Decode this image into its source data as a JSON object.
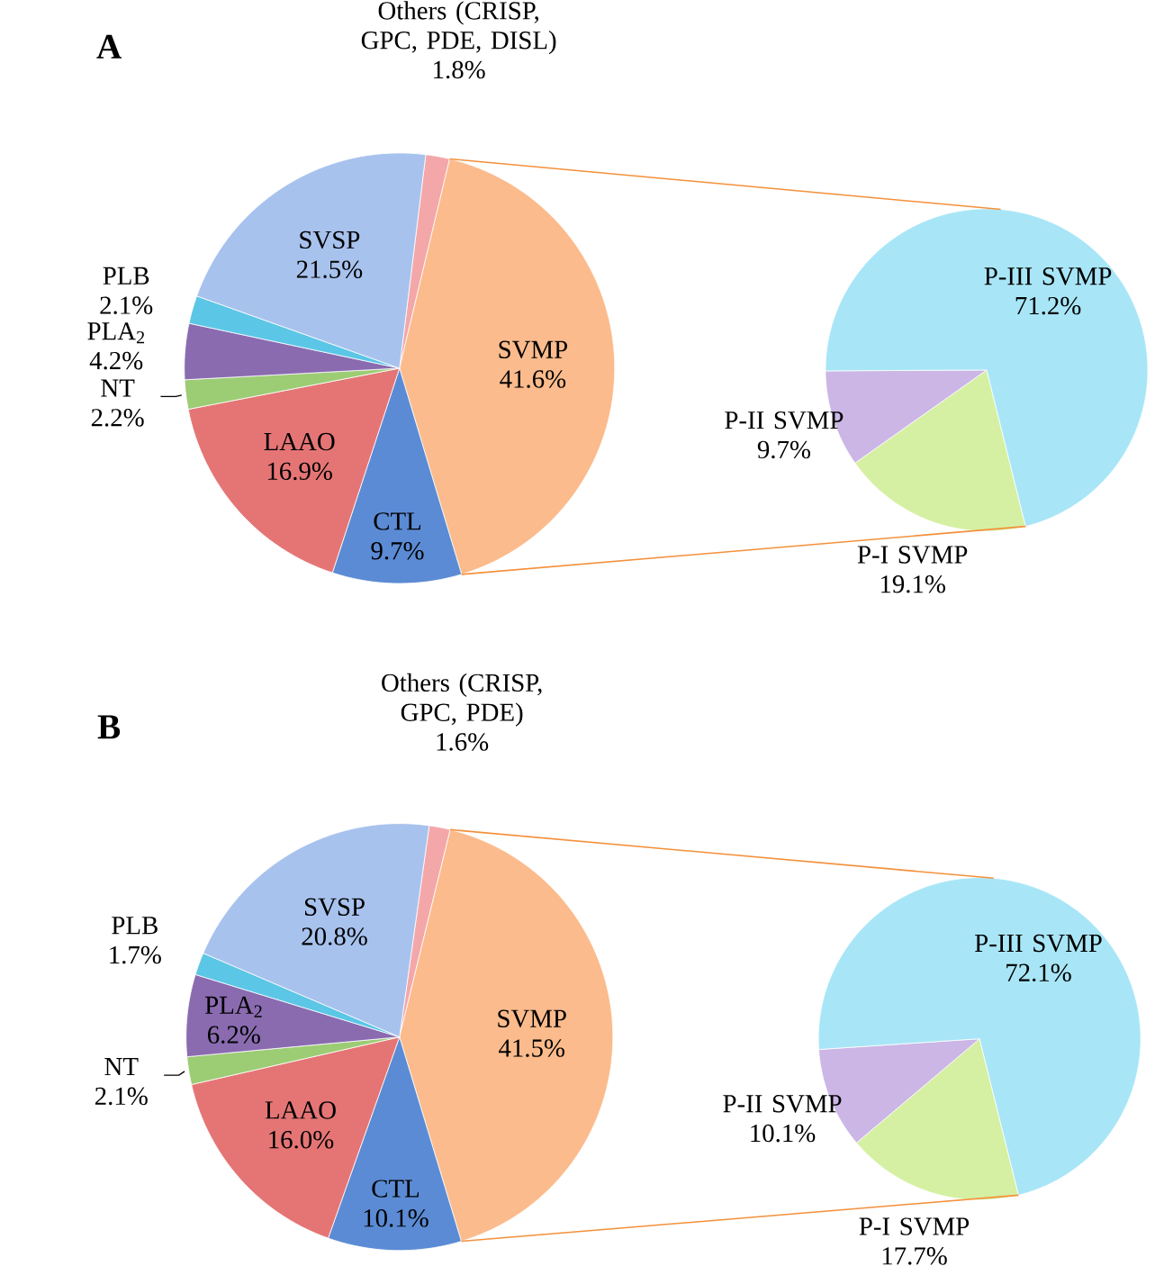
{
  "chart_data": [
    {
      "type": "pie",
      "title": "A",
      "categories": [
        "Others (CRISP, GPC, PDE, DISL)",
        "SVMP",
        "CTL",
        "LAAO",
        "NT",
        "PLA$_{2}$",
        "PLB",
        "SVSP"
      ],
      "values": [
        1.8,
        41.6,
        9.7,
        16.9,
        2.2,
        4.2,
        2.1,
        21.5
      ],
      "value_labels": [
        "1.8%",
        "41.6%",
        "9.7%",
        "16.9%",
        "2.2%",
        "4.2%",
        "2.1%",
        "21.5%"
      ],
      "colors": [
        "#f4a7a9",
        "#fbbb8c",
        "#5b8bd4",
        "#e57575",
        "#9ccc74",
        "#8a6bb0",
        "#5cc6e6",
        "#a8c2ee"
      ]
    },
    {
      "type": "pie",
      "categories": [
        "P-I SVMP",
        "P-II SVMP",
        "P-III SVMP"
      ],
      "values": [
        19.1,
        9.7,
        71.2
      ],
      "value_labels": [
        "19.1%",
        "9.7%",
        "71.2%"
      ],
      "colors": [
        "#d5f0a2",
        "#cbb6e6",
        "#a8e6f7"
      ]
    },
    {
      "type": "pie",
      "title": "B",
      "categories": [
        "Others (CRISP, GPC, PDE)",
        "SVMP",
        "CTL",
        "LAAO",
        "NT",
        "PLA$_{2}$",
        "PLB",
        "SVSP"
      ],
      "values": [
        1.6,
        41.5,
        10.1,
        16.0,
        2.1,
        6.2,
        1.7,
        20.8
      ],
      "value_labels": [
        "1.6%",
        "41.5%",
        "10.1%",
        "16.0%",
        "2.1%",
        "6.2%",
        "1.7%",
        "20.8%"
      ],
      "colors": [
        "#f4a7a9",
        "#fbbb8c",
        "#5b8bd4",
        "#e57575",
        "#9ccc74",
        "#8a6bb0",
        "#5cc6e6",
        "#a8c2ee"
      ]
    },
    {
      "type": "pie",
      "categories": [
        "P-I SVMP",
        "P-II SVMP",
        "P-III SVMP"
      ],
      "values": [
        17.7,
        10.1,
        72.1
      ],
      "value_labels": [
        "17.7%",
        "10.1%",
        "72.1%"
      ],
      "colors": [
        "#d5f0a2",
        "#cbb6e6",
        "#a8e6f7"
      ]
    }
  ]
}
